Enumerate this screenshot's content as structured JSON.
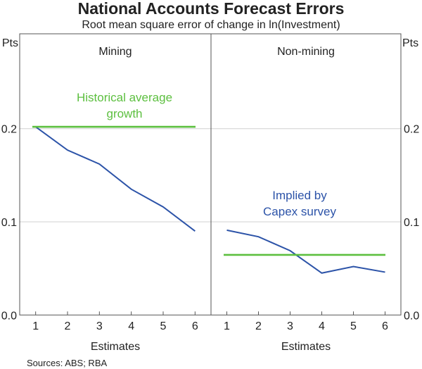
{
  "chart_data": {
    "type": "line",
    "title": "National Accounts Forecast Errors",
    "subtitle": "Root mean square error of change in ln(Investment)",
    "ylabel": "Pts",
    "yticks": [
      "0.0",
      "0.1",
      "0.2"
    ],
    "ylim": [
      0,
      0.3
    ],
    "grid": true,
    "source": "Sources:   ABS; RBA",
    "colors": {
      "capex": "#2c53a8",
      "historical": "#5cbf3f"
    },
    "panels": [
      {
        "title": "Mining",
        "xlabel": "Estimates",
        "x": [
          1,
          2,
          3,
          4,
          5,
          6
        ],
        "series": [
          {
            "key": "capex",
            "values": [
              0.202,
              0.177,
              0.162,
              0.135,
              0.116,
              0.09
            ]
          },
          {
            "key": "historical",
            "values": [
              0.202,
              0.202,
              0.202,
              0.202,
              0.202,
              0.202
            ]
          }
        ],
        "annotation": {
          "series": "historical",
          "lines": [
            "Historical average",
            "growth"
          ]
        }
      },
      {
        "title": "Non-mining",
        "xlabel": "Estimates",
        "x": [
          1,
          2,
          3,
          4,
          5,
          6
        ],
        "series": [
          {
            "key": "capex",
            "values": [
              0.091,
              0.084,
              0.069,
              0.045,
              0.052,
              0.046
            ]
          },
          {
            "key": "historical",
            "values": [
              0.0645,
              0.0645,
              0.0645,
              0.0645,
              0.0645,
              0.0645
            ]
          }
        ],
        "annotation": {
          "series": "capex",
          "lines": [
            "Implied by",
            "Capex survey"
          ]
        }
      }
    ]
  }
}
